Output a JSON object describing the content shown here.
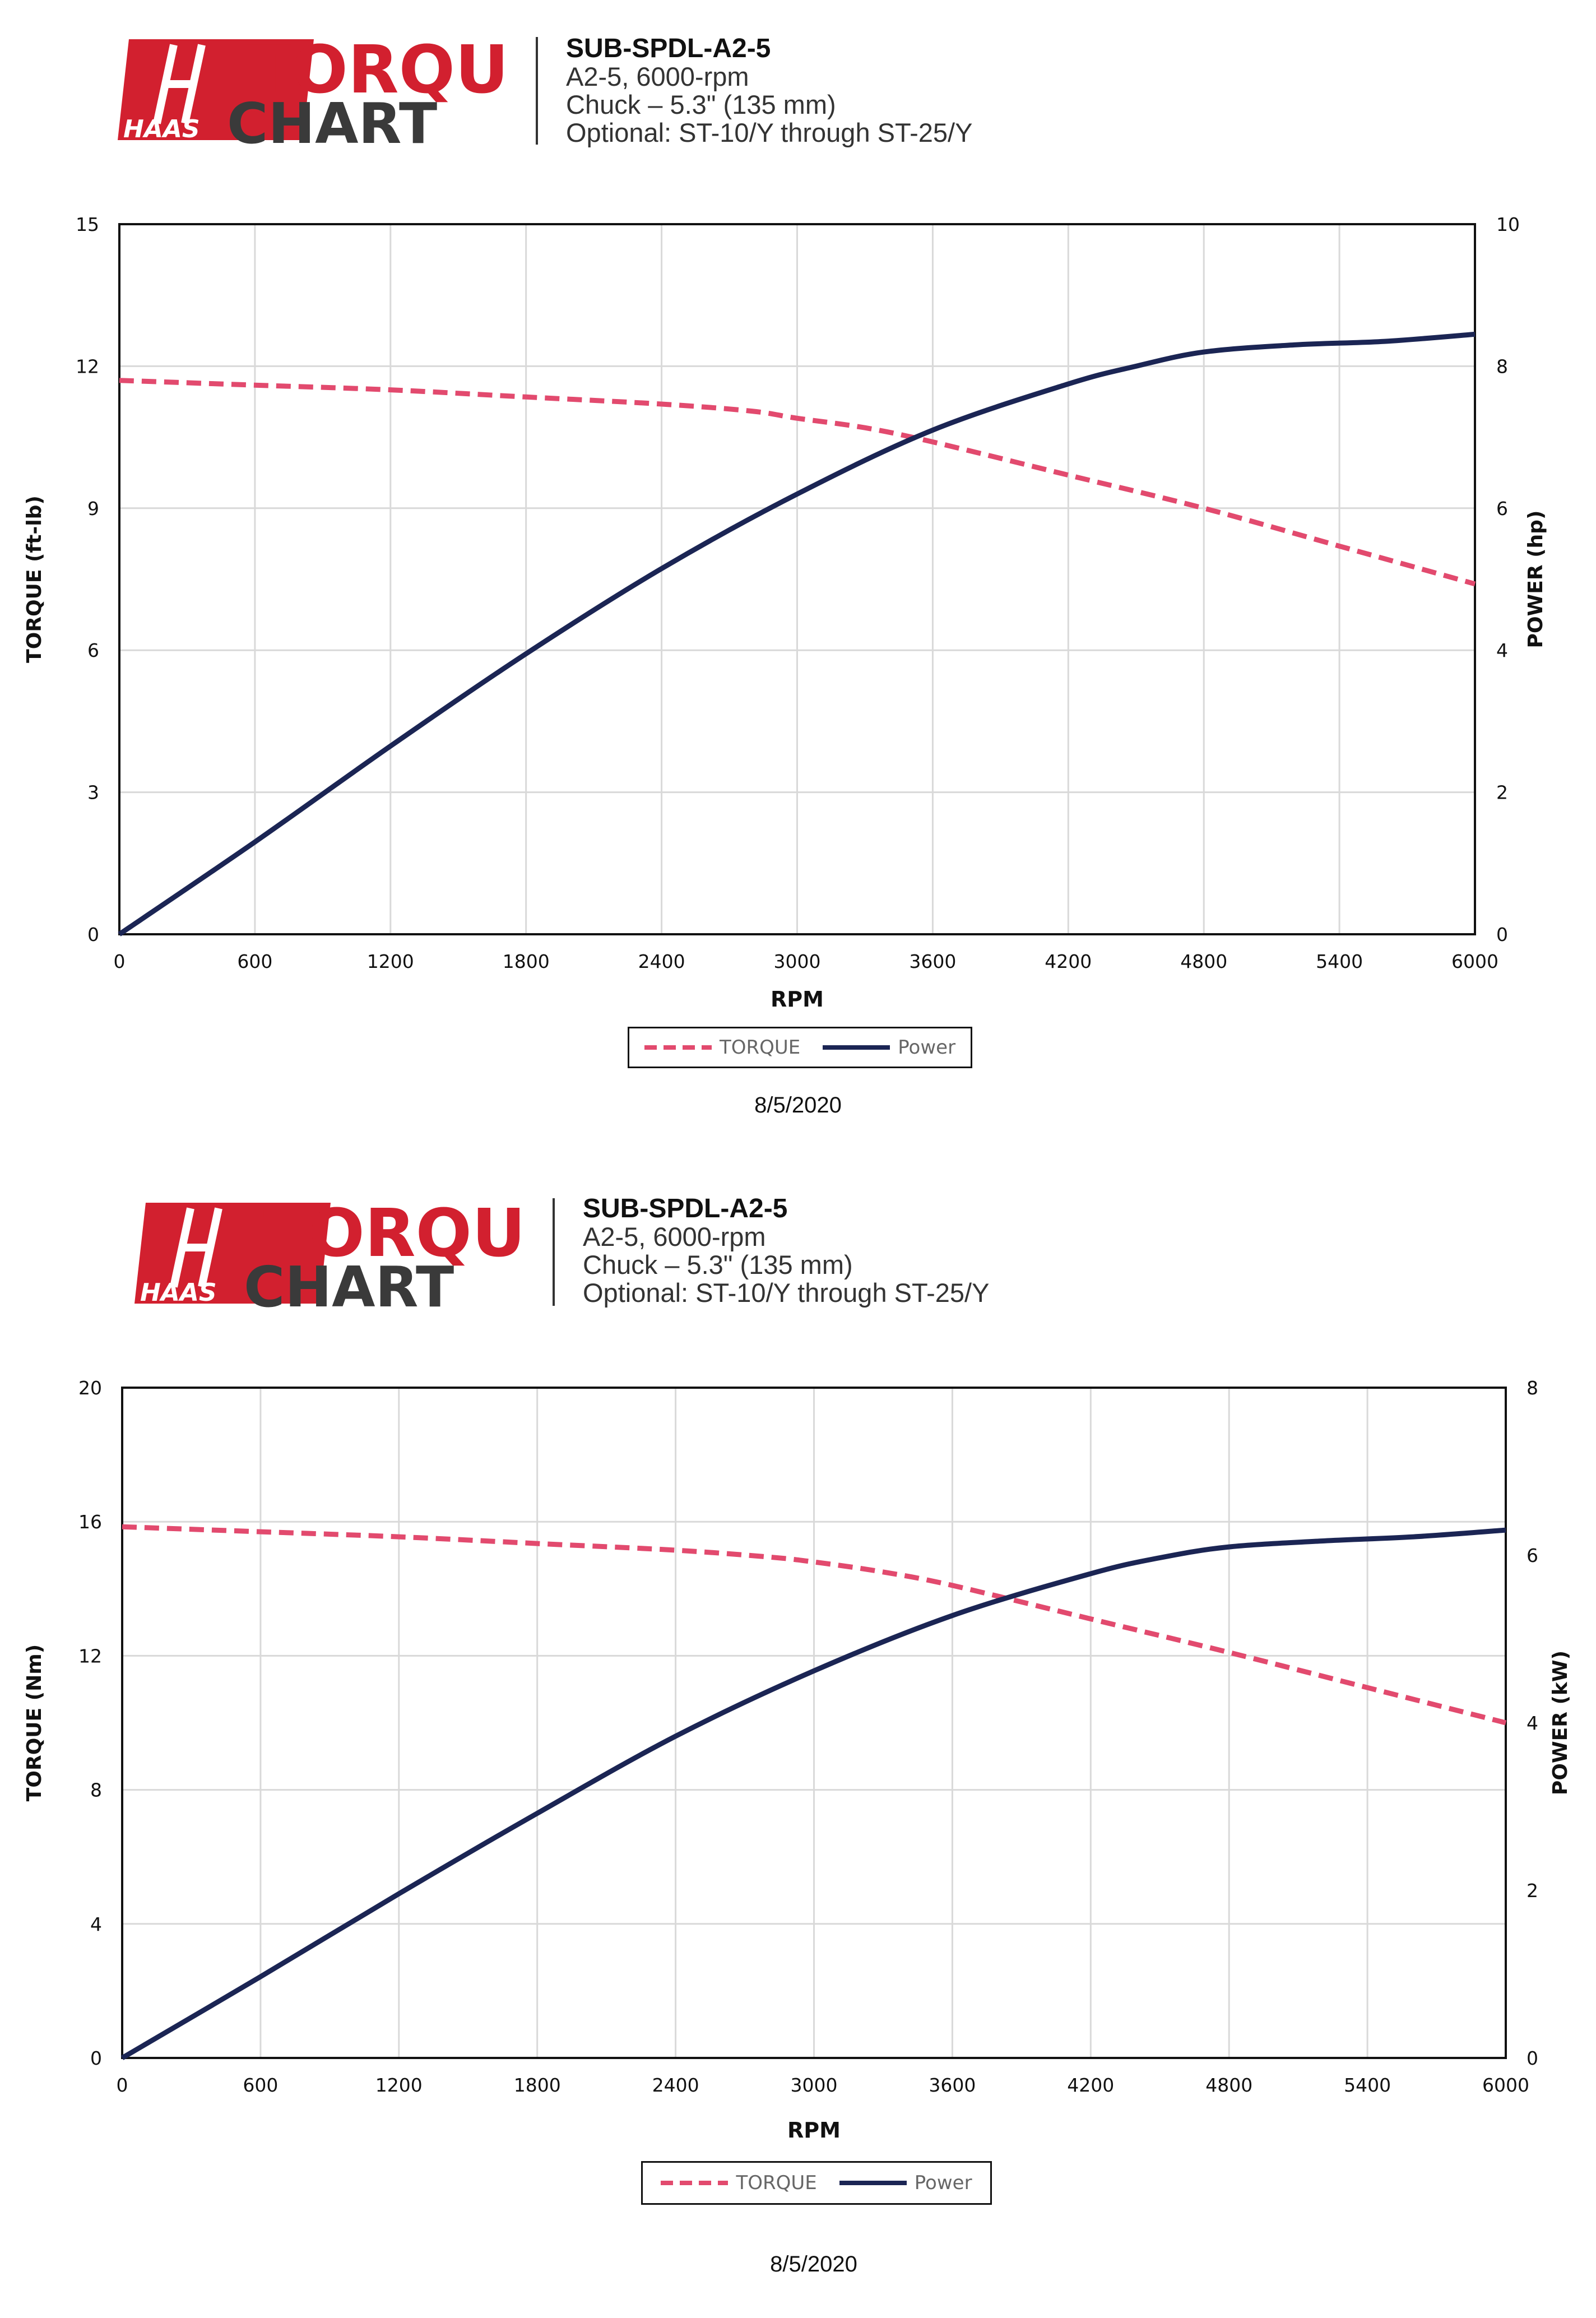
{
  "charts": [
    {
      "logo": {
        "word1": "TORQUE",
        "word2": "CHART",
        "brand": "HAAS"
      },
      "header": {
        "model": "SUB-SPDL-A2-5",
        "line1": "A2-5, 6000-rpm",
        "line2": "Chuck – 5.3\" (135 mm)",
        "line3": "Optional: ST-10/Y through ST-25/Y"
      },
      "legend": {
        "torque": "TORQUE",
        "power": "Power"
      },
      "date": "8/5/2020"
    },
    {
      "logo": {
        "word1": "TORQUE",
        "word2": "CHART",
        "brand": "HAAS"
      },
      "header": {
        "model": "SUB-SPDL-A2-5",
        "line1": "A2-5, 6000-rpm",
        "line2": "Chuck – 5.3\" (135 mm)",
        "line3": "Optional: ST-10/Y through ST-25/Y"
      },
      "legend": {
        "torque": "TORQUE",
        "power": "Power"
      },
      "date": "8/5/2020"
    }
  ],
  "colors": {
    "torque": "#e24a6e",
    "power": "#1b2554",
    "logo_red": "#d2202f",
    "logo_dark": "#3a3a3a",
    "grid": "#d9d9d9"
  },
  "chart_data": [
    {
      "type": "line",
      "xlabel": "RPM",
      "ylabel_left": "TORQUE (ft-lb)",
      "ylabel_right": "POWER (hp)",
      "xlim": [
        0,
        6000
      ],
      "ylim_left": [
        0,
        15
      ],
      "ylim_right": [
        0,
        10
      ],
      "x_ticks": [
        0,
        600,
        1200,
        1800,
        2400,
        3000,
        3600,
        4200,
        4800,
        5400,
        6000
      ],
      "y_ticks_left": [
        0,
        3,
        6,
        9,
        12,
        15
      ],
      "y_ticks_right": [
        0,
        2,
        4,
        6,
        8,
        10
      ],
      "grid": true,
      "legend_position": "bottom",
      "series": [
        {
          "name": "TORQUE",
          "axis": "left",
          "style": "dashed",
          "x": [
            0,
            600,
            1200,
            1800,
            2400,
            2800,
            3000,
            3300,
            3600,
            4200,
            4800,
            5400,
            6000
          ],
          "y": [
            11.7,
            11.6,
            11.5,
            11.35,
            11.2,
            11.05,
            10.9,
            10.7,
            10.4,
            9.7,
            9.0,
            8.2,
            7.4
          ]
        },
        {
          "name": "Power",
          "axis": "right",
          "style": "solid",
          "x": [
            0,
            600,
            1200,
            1800,
            2400,
            3000,
            3600,
            4200,
            4500,
            4800,
            5200,
            5600,
            6000
          ],
          "y": [
            0,
            1.3,
            2.65,
            3.95,
            5.15,
            6.2,
            7.1,
            7.75,
            8.0,
            8.2,
            8.3,
            8.35,
            8.45
          ]
        }
      ]
    },
    {
      "type": "line",
      "xlabel": "RPM",
      "ylabel_left": "TORQUE (Nm)",
      "ylabel_right": "POWER (kW)",
      "xlim": [
        0,
        6000
      ],
      "ylim_left": [
        0,
        20
      ],
      "ylim_right": [
        0,
        8
      ],
      "x_ticks": [
        0,
        600,
        1200,
        1800,
        2400,
        3000,
        3600,
        4200,
        4800,
        5400,
        6000
      ],
      "y_ticks_left": [
        0,
        4,
        8,
        12,
        16,
        20
      ],
      "y_ticks_right": [
        0,
        2,
        4,
        6,
        8
      ],
      "grid": true,
      "legend_position": "bottom",
      "series": [
        {
          "name": "TORQUE",
          "axis": "left",
          "style": "dashed",
          "x": [
            0,
            600,
            1200,
            1800,
            2400,
            2800,
            3000,
            3300,
            3600,
            4200,
            4800,
            5400,
            6000
          ],
          "y": [
            15.85,
            15.7,
            15.55,
            15.35,
            15.15,
            14.95,
            14.8,
            14.5,
            14.1,
            13.1,
            12.1,
            11.05,
            10.0
          ]
        },
        {
          "name": "Power",
          "axis": "right",
          "style": "solid",
          "x": [
            0,
            600,
            1200,
            1800,
            2400,
            3000,
            3600,
            4200,
            4500,
            4800,
            5200,
            5600,
            6000
          ],
          "y": [
            0,
            0.97,
            1.96,
            2.92,
            3.84,
            4.62,
            5.28,
            5.78,
            5.97,
            6.1,
            6.17,
            6.22,
            6.3
          ]
        }
      ]
    }
  ]
}
